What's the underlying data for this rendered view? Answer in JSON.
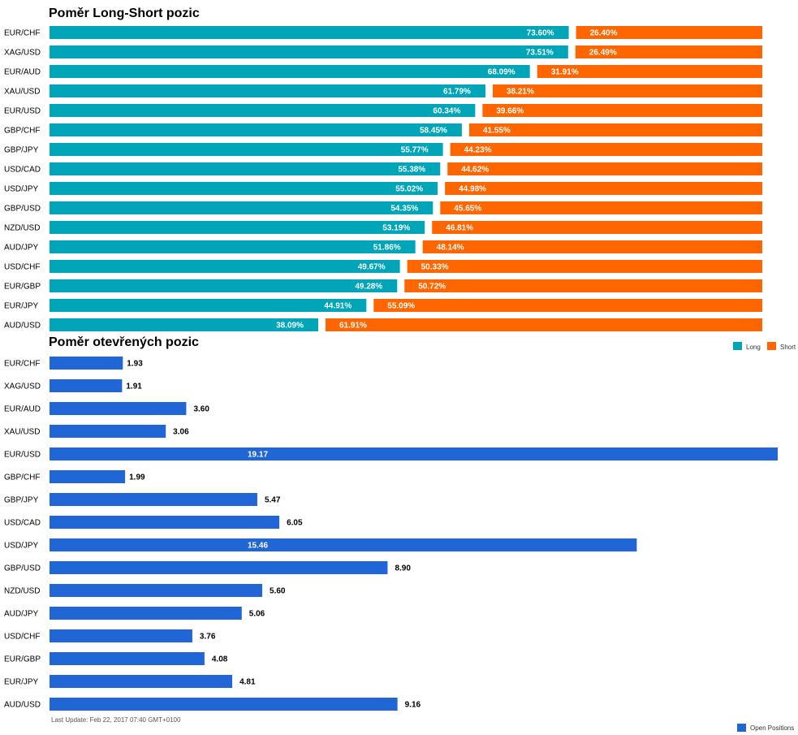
{
  "chart_data": [
    {
      "type": "bar",
      "stacked": true,
      "orientation": "horizontal",
      "title": "Poměr Long-Short pozic",
      "categories": [
        "EUR/CHF",
        "XAG/USD",
        "EUR/AUD",
        "XAU/USD",
        "EUR/USD",
        "GBP/CHF",
        "GBP/JPY",
        "USD/CAD",
        "USD/JPY",
        "GBP/USD",
        "NZD/USD",
        "AUD/JPY",
        "USD/CHF",
        "EUR/GBP",
        "EUR/JPY",
        "AUD/USD"
      ],
      "series": [
        {
          "name": "Long",
          "color": "#00a5b8",
          "values": [
            73.6,
            73.51,
            68.09,
            61.79,
            60.34,
            58.45,
            55.77,
            55.38,
            55.02,
            54.35,
            53.19,
            51.86,
            49.67,
            49.28,
            44.91,
            38.09
          ]
        },
        {
          "name": "Short",
          "color": "#ff6600",
          "values": [
            26.4,
            26.49,
            31.91,
            38.21,
            39.66,
            41.55,
            44.23,
            44.62,
            44.98,
            45.65,
            46.81,
            48.14,
            50.33,
            50.72,
            55.09,
            61.91
          ]
        }
      ],
      "value_format": "percent",
      "xlim": [
        0,
        100
      ],
      "legend": "bottom-right"
    },
    {
      "type": "bar",
      "orientation": "horizontal",
      "title": "Poměr otevřených pozic",
      "categories": [
        "EUR/CHF",
        "XAG/USD",
        "EUR/AUD",
        "XAU/USD",
        "EUR/USD",
        "GBP/CHF",
        "GBP/JPY",
        "USD/CAD",
        "USD/JPY",
        "GBP/USD",
        "NZD/USD",
        "AUD/JPY",
        "USD/CHF",
        "EUR/GBP",
        "EUR/JPY",
        "AUD/USD"
      ],
      "series": [
        {
          "name": "Open Positions",
          "color": "#2166d6",
          "values": [
            1.93,
            1.91,
            3.6,
            3.06,
            19.17,
            1.99,
            5.47,
            6.05,
            15.46,
            8.9,
            5.6,
            5.06,
            3.76,
            4.08,
            4.81,
            9.16
          ]
        }
      ],
      "xlim": [
        0,
        19.17
      ],
      "legend": "bottom-right"
    }
  ],
  "footer": {
    "last_update": "Last Update: Feb 22, 2017 07:40 GMT+0100"
  }
}
